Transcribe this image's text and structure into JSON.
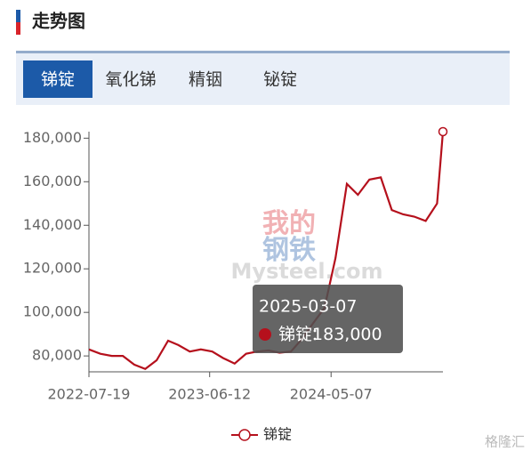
{
  "header": {
    "title": "走势图"
  },
  "tabs": [
    "锑锭",
    "氧化锑",
    "精铟",
    "铋锭"
  ],
  "active_tab": 0,
  "watermark": [
    "我的",
    "钢铁",
    "Mysteel.com"
  ],
  "brand": "格隆汇",
  "chart_data": {
    "type": "line",
    "x": [
      "2022-07-19",
      "2022-08-19",
      "2022-09-19",
      "2022-10-19",
      "2022-11-19",
      "2022-12-19",
      "2023-01-19",
      "2023-02-19",
      "2023-03-19",
      "2023-04-19",
      "2023-05-19",
      "2023-06-19",
      "2023-07-19",
      "2023-08-19",
      "2023-09-19",
      "2023-10-19",
      "2023-11-19",
      "2023-12-19",
      "2024-01-19",
      "2024-02-19",
      "2024-03-19",
      "2024-04-19",
      "2024-05-19",
      "2024-06-19",
      "2024-07-19",
      "2024-08-19",
      "2024-09-19",
      "2024-10-19",
      "2024-11-19",
      "2024-12-19",
      "2025-01-19",
      "2025-02-19",
      "2025-03-07"
    ],
    "series": [
      {
        "name": "锑锭",
        "color": "#b5101c",
        "values": [
          83000,
          81000,
          80000,
          80000,
          76000,
          74000,
          78000,
          87000,
          85000,
          82000,
          83000,
          82000,
          79000,
          76500,
          81000,
          82000,
          82500,
          81500,
          82000,
          88000,
          95000,
          102000,
          125000,
          159000,
          154000,
          161000,
          162000,
          147000,
          145000,
          144000,
          142000,
          150000,
          183000
        ]
      }
    ],
    "xlim": [
      "2022-07-19",
      "2025-03-07"
    ],
    "xticks": [
      "2022-07-19",
      "2023-06-12",
      "2024-05-07"
    ],
    "ylim": [
      72700,
      183000
    ],
    "yticks": [
      {
        "value": 80000,
        "label": "80,000"
      },
      {
        "value": 100000,
        "label": "100,000"
      },
      {
        "value": 120000,
        "label": "120,000"
      },
      {
        "value": 140000,
        "label": "140,000"
      },
      {
        "value": 160000,
        "label": "160,000"
      },
      {
        "value": 180000,
        "label": "180,000"
      }
    ],
    "tooltip": {
      "x": "2025-03-07",
      "series": "锑锭",
      "value": {
        "value": 183000,
        "label": "183,000"
      }
    },
    "legend": "bottom"
  }
}
